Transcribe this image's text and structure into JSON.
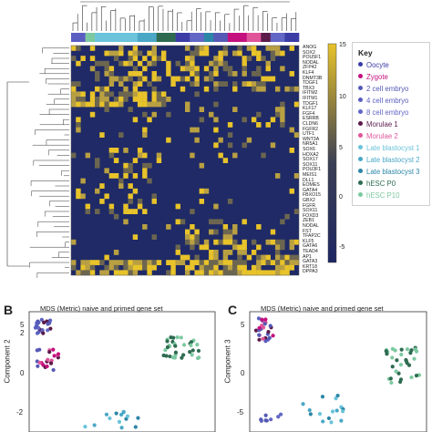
{
  "heatmap": {
    "genes": [
      "ANOG",
      "SOX2",
      "POU5F1",
      "NODAL",
      "ZFP42",
      "KLF4",
      "DNMT3B",
      "TDGF1",
      "TBX3",
      "IFITM2",
      "IFITM1",
      "TDGF1",
      "KLF17",
      "FGF4",
      "ESRRB",
      "CLDN6",
      "FGFR2",
      "UTF1",
      "WNT3A",
      "NR5A1",
      "SOX6",
      "HOXA2",
      "SOX17",
      "SOX11",
      "POU3F1",
      "MEIS1",
      "DLL1",
      "EOMES",
      "GATA4",
      "FBXO15",
      "GBX2",
      "FGFR",
      "SOX11",
      "FOXD3",
      "ZEB1",
      "NODAL",
      "FST",
      "TFAP2C",
      "KLF5",
      "GATA6",
      "TEAD4",
      "AP1",
      "GATA3",
      "KRT18",
      "DPPA3"
    ],
    "colorbar_ticks": [
      "15",
      "10",
      "5",
      "0",
      "-5"
    ],
    "colorbar_colors": {
      "low": "#1c2563",
      "mid": "#3a3f55",
      "high": "#e8c32a"
    }
  },
  "key": {
    "title": "Key",
    "items": [
      {
        "label": "Oocyte",
        "color": "#3b3ca6"
      },
      {
        "label": "Zygote",
        "color": "#c4107f"
      },
      {
        "label": "2 cell embryo",
        "color": "#5559b5"
      },
      {
        "label": "4 cell embryo",
        "color": "#5a5ec0"
      },
      {
        "label": "8 cell embryo",
        "color": "#6266c4"
      },
      {
        "label": "Morulae 1",
        "color": "#5b1a4a"
      },
      {
        "label": "Morulae 2",
        "color": "#e0559a"
      },
      {
        "label": "Late blastocyst 1",
        "color": "#6ac3da"
      },
      {
        "label": "Late blastocyst 2",
        "color": "#4aa7c6"
      },
      {
        "label": "Late blastocyst 3",
        "color": "#2b86a6"
      },
      {
        "label": "hESC P0",
        "color": "#2e6b50"
      },
      {
        "label": "hESC P10",
        "color": "#7cc9a0"
      }
    ]
  },
  "panels": {
    "b": {
      "letter": "B",
      "title": "MDS (Metric) naive and primed gene set",
      "ylabel": "Component 2",
      "yticks": [
        "5",
        "2",
        "0",
        "-2",
        "-5"
      ]
    },
    "c": {
      "letter": "C",
      "title": "MDS (Metric) naive and primed gene set",
      "ylabel": "Component 3",
      "yticks": [
        "5",
        "0",
        "-5"
      ]
    }
  }
}
